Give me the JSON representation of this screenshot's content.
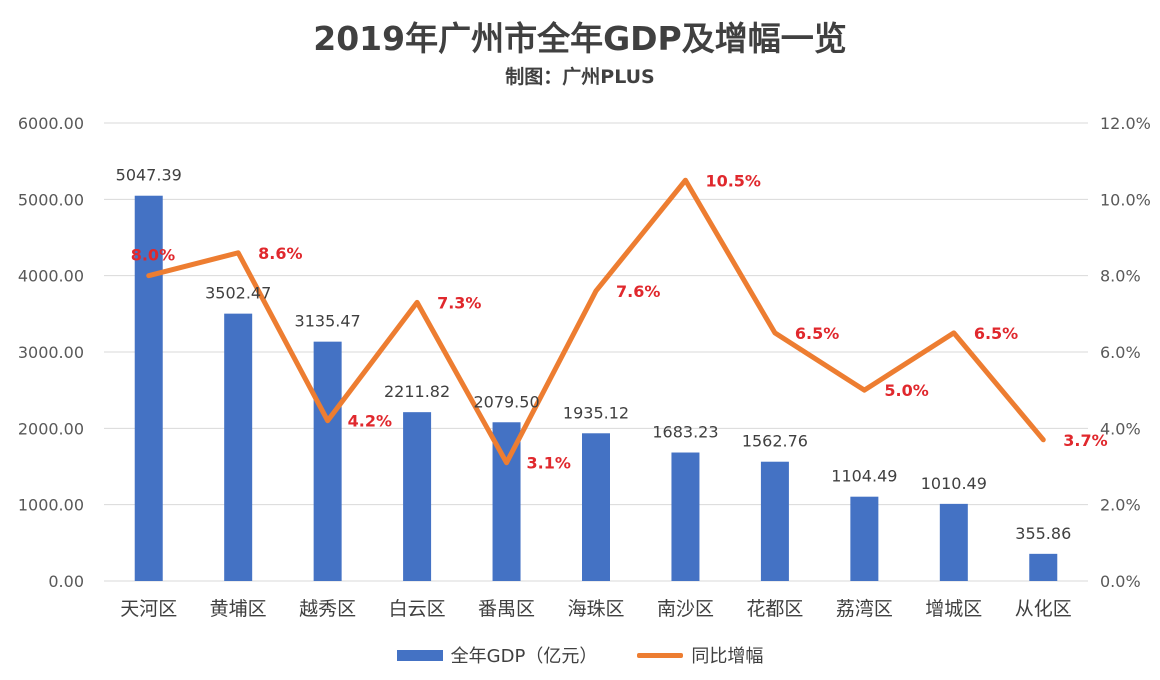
{
  "title": "2019年广州市全年GDP及增幅一览",
  "subtitle": "制图：广州PLUS",
  "colors": {
    "bar": "#4472c4",
    "line": "#ed7d31",
    "line_label": "#e0282d",
    "grid": "#d9d9d9"
  },
  "chart_data": {
    "type": "bar",
    "categories": [
      "天河区",
      "黄埔区",
      "越秀区",
      "白云区",
      "番禺区",
      "海珠区",
      "南沙区",
      "花都区",
      "荔湾区",
      "增城区",
      "从化区"
    ],
    "series": [
      {
        "name": "全年GDP（亿元）",
        "type": "bar",
        "axis": "left",
        "values": [
          5047.39,
          3502.47,
          3135.47,
          2211.82,
          2079.5,
          1935.12,
          1683.23,
          1562.76,
          1104.49,
          1010.49,
          355.86
        ],
        "labels": [
          "5047.39",
          "3502.47",
          "3135.47",
          "2211.82",
          "2079.50",
          "1935.12",
          "1683.23",
          "1562.76",
          "1104.49",
          "1010.49",
          "355.86"
        ]
      },
      {
        "name": "同比增幅",
        "type": "line",
        "axis": "right",
        "values": [
          8.0,
          8.6,
          4.2,
          7.3,
          3.1,
          7.6,
          10.5,
          6.5,
          5.0,
          6.5,
          3.7
        ],
        "labels": [
          "8.0%",
          "8.6%",
          "4.2%",
          "7.3%",
          "3.1%",
          "7.6%",
          "10.5%",
          "6.5%",
          "5.0%",
          "6.5%",
          "3.7%"
        ]
      }
    ],
    "y_left": {
      "lim": [
        0,
        6000
      ],
      "ticks": [
        "0.00",
        "1000.00",
        "2000.00",
        "3000.00",
        "4000.00",
        "5000.00",
        "6000.00"
      ]
    },
    "y_right": {
      "lim": [
        0,
        12
      ],
      "ticks": [
        "0.0%",
        "2.0%",
        "4.0%",
        "6.0%",
        "8.0%",
        "10.0%",
        "12.0%"
      ]
    },
    "grid": true,
    "legend_position": "bottom"
  }
}
